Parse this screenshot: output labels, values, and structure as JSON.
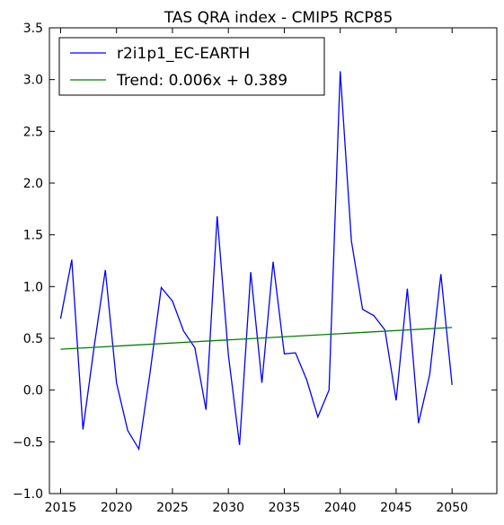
{
  "chart_data": {
    "type": "line",
    "title": "TAS QRA index - CMIP5 RCP85",
    "xlabel": "",
    "ylabel": "",
    "xlim": [
      2014,
      2054
    ],
    "ylim": [
      -1.0,
      3.5
    ],
    "x_ticks": [
      2015,
      2020,
      2025,
      2030,
      2035,
      2040,
      2045,
      2050
    ],
    "y_ticks": [
      -1.0,
      -0.5,
      0.0,
      0.5,
      1.0,
      1.5,
      2.0,
      2.5,
      3.0,
      3.5
    ],
    "y_tick_labels": [
      "−1.0",
      "−0.5",
      "0.0",
      "0.5",
      "1.0",
      "1.5",
      "2.0",
      "2.5",
      "3.0",
      "3.5"
    ],
    "grid": false,
    "legend_position": "top-left",
    "series": [
      {
        "name": "r2i1p1_EC-EARTH",
        "color": "#0000ff",
        "x": [
          2015,
          2016,
          2017,
          2018,
          2019,
          2020,
          2021,
          2022,
          2023,
          2024,
          2025,
          2026,
          2027,
          2028,
          2029,
          2030,
          2031,
          2032,
          2033,
          2034,
          2035,
          2036,
          2037,
          2038,
          2039,
          2040,
          2041,
          2042,
          2043,
          2044,
          2045,
          2046,
          2047,
          2048,
          2049,
          2050
        ],
        "values": [
          0.69,
          1.26,
          -0.38,
          0.42,
          1.16,
          0.07,
          -0.39,
          -0.57,
          0.17,
          0.99,
          0.86,
          0.57,
          0.41,
          -0.19,
          1.68,
          0.34,
          -0.53,
          1.14,
          0.07,
          1.24,
          0.35,
          0.36,
          0.1,
          -0.26,
          0.0,
          3.08,
          1.44,
          0.78,
          0.72,
          0.58,
          -0.1,
          0.98,
          -0.32,
          0.15,
          1.12,
          0.05
        ]
      },
      {
        "name": "Trend: 0.006x + 0.389",
        "color": "#008000",
        "x": [
          2015,
          2050
        ],
        "values": [
          0.395,
          0.605
        ]
      }
    ]
  }
}
